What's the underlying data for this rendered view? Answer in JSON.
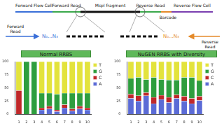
{
  "diagram": {
    "segments": [
      "Forward Flow Cell",
      "Forward Read",
      "MspI fragment",
      "Reverse Read",
      "Reverse Flow Cell"
    ],
    "barcode": "Barcode",
    "zoom_left": {
      "read": "Forward Read",
      "bases": "N₀...N₃"
    },
    "zoom_right": {
      "read": "Reverse Read",
      "bases": "N₀...N₃"
    }
  },
  "chart_data": [
    {
      "type": "bar",
      "title": "Normal RRBS",
      "stacked": true,
      "grid": false,
      "legend": "right",
      "categories": [
        "1",
        "2",
        "3",
        "4",
        "5",
        "6",
        "7",
        "8",
        "9",
        "10"
      ],
      "series": [
        {
          "name": "A",
          "color": "#5b6bd6",
          "values": [
            0,
            0,
            0,
            8,
            10,
            5,
            12,
            6,
            10,
            8
          ]
        },
        {
          "name": "C",
          "color": "#c0282a",
          "values": [
            45,
            0,
            0,
            4,
            5,
            3,
            6,
            4,
            5,
            4
          ]
        },
        {
          "name": "G",
          "color": "#2e9e3e",
          "values": [
            0,
            100,
            100,
            28,
            25,
            30,
            22,
            30,
            25,
            28
          ]
        },
        {
          "name": "T",
          "color": "#e3e33c",
          "values": [
            55,
            0,
            0,
            60,
            60,
            62,
            60,
            60,
            60,
            60
          ]
        }
      ],
      "ylim": [
        0,
        100
      ],
      "yticks": [
        0,
        25,
        50,
        75,
        100
      ]
    },
    {
      "type": "bar",
      "title": "NuGEN RRBS with Diversity",
      "stacked": true,
      "grid": false,
      "legend": "right",
      "categories": [
        "1",
        "2",
        "3",
        "4",
        "5",
        "6",
        "7",
        "8",
        "9",
        "10"
      ],
      "series": [
        {
          "name": "A",
          "color": "#5b6bd6",
          "values": [
            30,
            25,
            35,
            20,
            28,
            22,
            30,
            25,
            20,
            26
          ]
        },
        {
          "name": "C",
          "color": "#c0282a",
          "values": [
            8,
            10,
            6,
            12,
            8,
            10,
            7,
            9,
            10,
            8
          ]
        },
        {
          "name": "G",
          "color": "#2e9e3e",
          "values": [
            30,
            35,
            25,
            38,
            30,
            33,
            28,
            36,
            40,
            30
          ]
        },
        {
          "name": "T",
          "color": "#e3e33c",
          "values": [
            32,
            30,
            34,
            30,
            34,
            35,
            35,
            30,
            30,
            36
          ]
        }
      ],
      "ylim": [
        0,
        100
      ],
      "yticks": [
        0,
        25,
        50,
        75,
        100
      ]
    }
  ]
}
